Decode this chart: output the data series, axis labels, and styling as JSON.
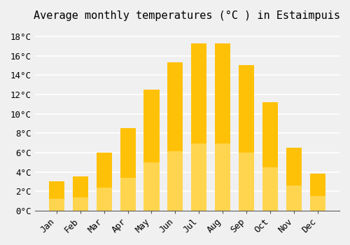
{
  "months": [
    "Jan",
    "Feb",
    "Mar",
    "Apr",
    "May",
    "Jun",
    "Jul",
    "Aug",
    "Sep",
    "Oct",
    "Nov",
    "Dec"
  ],
  "temperatures": [
    3.0,
    3.5,
    6.0,
    8.5,
    12.5,
    15.3,
    17.3,
    17.3,
    15.0,
    11.2,
    6.5,
    3.8
  ],
  "bar_color_top": "#FFC107",
  "bar_color_bottom": "#FFD54F",
  "title": "Average monthly temperatures (°C ) in Estaimpuis",
  "ylabel_ticks": [
    "0°C",
    "2°C",
    "4°C",
    "6°C",
    "8°C",
    "10°C",
    "12°C",
    "14°C",
    "16°C",
    "18°C"
  ],
  "ytick_values": [
    0,
    2,
    4,
    6,
    8,
    10,
    12,
    14,
    16,
    18
  ],
  "ylim": [
    0,
    19
  ],
  "background_color": "#f0f0f0",
  "grid_color": "#ffffff",
  "title_fontsize": 11,
  "tick_fontsize": 9,
  "font_family": "monospace"
}
